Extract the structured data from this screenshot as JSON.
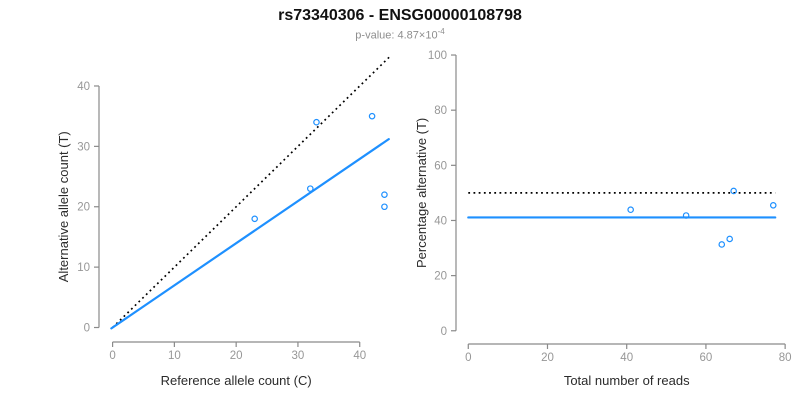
{
  "header": {
    "title": "rs73340306 - ENSG00000108798",
    "subtitle_main": "p-value: 4.87×10",
    "subtitle_exponent": "-4"
  },
  "colors": {
    "point_blue": "#1E90FF",
    "line_blue": "#1E90FF",
    "dotted_black": "#000000",
    "axis_gray": "#8a8a8a",
    "tick_label_gray": "#979797",
    "axis_title_dark": "#2b2b2b"
  },
  "chart_data": [
    {
      "type": "scatter",
      "name": "allele-counts-panel",
      "xlabel": "Reference allele count (C)",
      "ylabel": "Alternative allele count (T)",
      "x": [
        23,
        32,
        33,
        42,
        44,
        44
      ],
      "y": [
        18,
        23,
        34,
        35,
        22,
        20
      ],
      "xticks": [
        0,
        10,
        20,
        30,
        40
      ],
      "yticks": [
        0,
        10,
        20,
        30,
        40
      ],
      "xlim": [
        -2.2,
        44.9
      ],
      "ylim": [
        -2.4,
        44.8
      ],
      "grid": false,
      "legend": false,
      "lines": [
        {
          "name": "identity-line",
          "style": "dotted",
          "color": "#000000",
          "x1": 0,
          "y1": 0,
          "x2": 44.8,
          "y2": 44.8
        },
        {
          "name": "fit-line",
          "style": "solid",
          "color": "#1E90FF",
          "x1": -0.2,
          "y1": -0.14,
          "x2": 44.7,
          "y2": 31.2
        }
      ]
    },
    {
      "type": "scatter",
      "name": "percentage-panel",
      "xlabel": "Total number of reads",
      "ylabel": "Percentage alternative (T)",
      "x": [
        41,
        55,
        67,
        77,
        66,
        64
      ],
      "y": [
        43.9,
        41.8,
        50.7,
        45.5,
        33.3,
        31.3
      ],
      "xticks": [
        0,
        20,
        40,
        60,
        80
      ],
      "yticks": [
        0,
        20,
        40,
        60,
        80,
        100
      ],
      "xlim": [
        -3.1,
        83.5
      ],
      "ylim": [
        -4.8,
        104
      ],
      "grid": false,
      "legend": false,
      "lines": [
        {
          "name": "expected-50pct-line",
          "style": "dotted",
          "color": "#000000",
          "x1": 0,
          "y1": 50,
          "x2": 77.5,
          "y2": 50
        },
        {
          "name": "observed-pct-line",
          "style": "solid",
          "color": "#1E90FF",
          "x1": 0,
          "y1": 41.1,
          "x2": 77.5,
          "y2": 41.1
        }
      ]
    }
  ]
}
